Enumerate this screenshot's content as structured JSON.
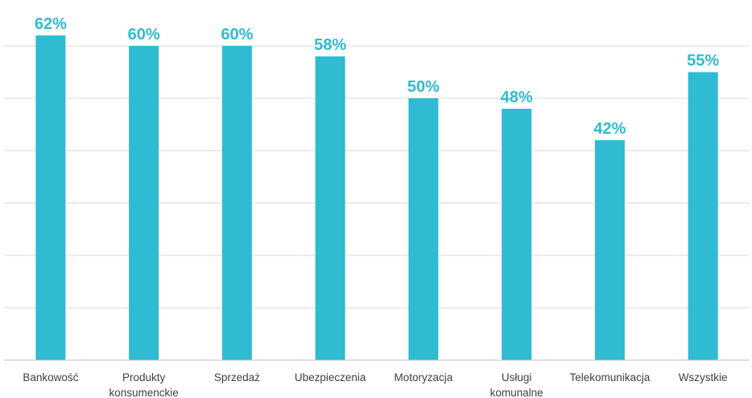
{
  "chart_data": {
    "type": "bar",
    "categories": [
      [
        "Bankowość"
      ],
      [
        "Produkty",
        "konsumenckie"
      ],
      [
        "Sprzedaż"
      ],
      [
        "Ubezpieczenia"
      ],
      [
        "Motoryzacja"
      ],
      [
        "Usługi",
        "komunalne"
      ],
      [
        "Telekomunikacja"
      ],
      [
        "Wszystkie"
      ]
    ],
    "values": [
      62,
      60,
      60,
      58,
      50,
      48,
      42,
      55
    ],
    "data_labels": [
      "62%",
      "60%",
      "60%",
      "58%",
      "50%",
      "48%",
      "42%",
      "55%"
    ],
    "ylim": [
      0,
      70
    ],
    "gridlines": [
      10,
      20,
      30,
      40,
      50,
      60
    ],
    "grid": true,
    "bar_color": "#2fbbd1",
    "label_color": "#2fbbd1",
    "title": "",
    "xlabel": "",
    "ylabel": ""
  }
}
